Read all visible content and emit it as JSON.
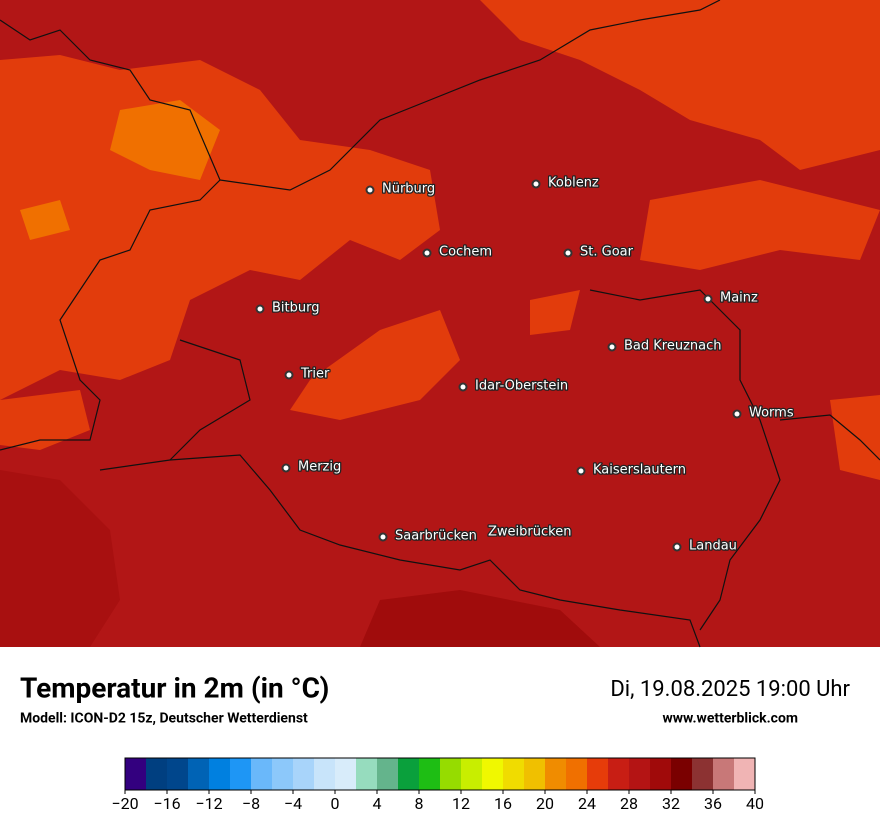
{
  "title": "Temperatur in 2m (in °C)",
  "subtitle": "Modell: ICON-D2 15z, Deutscher Wetterdienst",
  "valid_time": "Di, 19.08.2025 19:00 Uhr",
  "source": "www.wetterblick.com",
  "cities": [
    "Nürburg",
    "Koblenz",
    "Cochem",
    "St. Goar",
    "Bitburg",
    "Mainz",
    "Bad Kreuznach",
    "Trier",
    "Idar-Oberstein",
    "Worms",
    "Merzig",
    "Kaiserslautern",
    "Saarbrücken",
    "Zweibrücken",
    "Landau"
  ],
  "colorbar": {
    "lim": [
      -20,
      40
    ],
    "ticks": [
      {
        "value": -20,
        "label": "−20"
      },
      {
        "value": -16,
        "label": "−16"
      },
      {
        "value": -12,
        "label": "−12"
      },
      {
        "value": -8,
        "label": "−8"
      },
      {
        "value": -4,
        "label": "−4"
      },
      0,
      4,
      8,
      12,
      16,
      20,
      24,
      28,
      32,
      36,
      40
    ],
    "colors": [
      "#33007f",
      "#003f80",
      "#00468c",
      "#0063b5",
      "#0080e0",
      "#1e96f5",
      "#6ab8fa",
      "#8cc8fa",
      "#a8d4fa",
      "#c8e4fa",
      "#d8ecfa",
      "#96dcbe",
      "#64b48c",
      "#0aa03c",
      "#1ebe14",
      "#96dc00",
      "#c8ee00",
      "#f0f800",
      "#f0dc00",
      "#f0c000",
      "#f08c00",
      "#f07000",
      "#e63c0a",
      "#c81e14",
      "#b41414",
      "#a00a0a",
      "#7a0000",
      "#8c3232",
      "#c87878",
      "#f0b4b4"
    ]
  }
}
